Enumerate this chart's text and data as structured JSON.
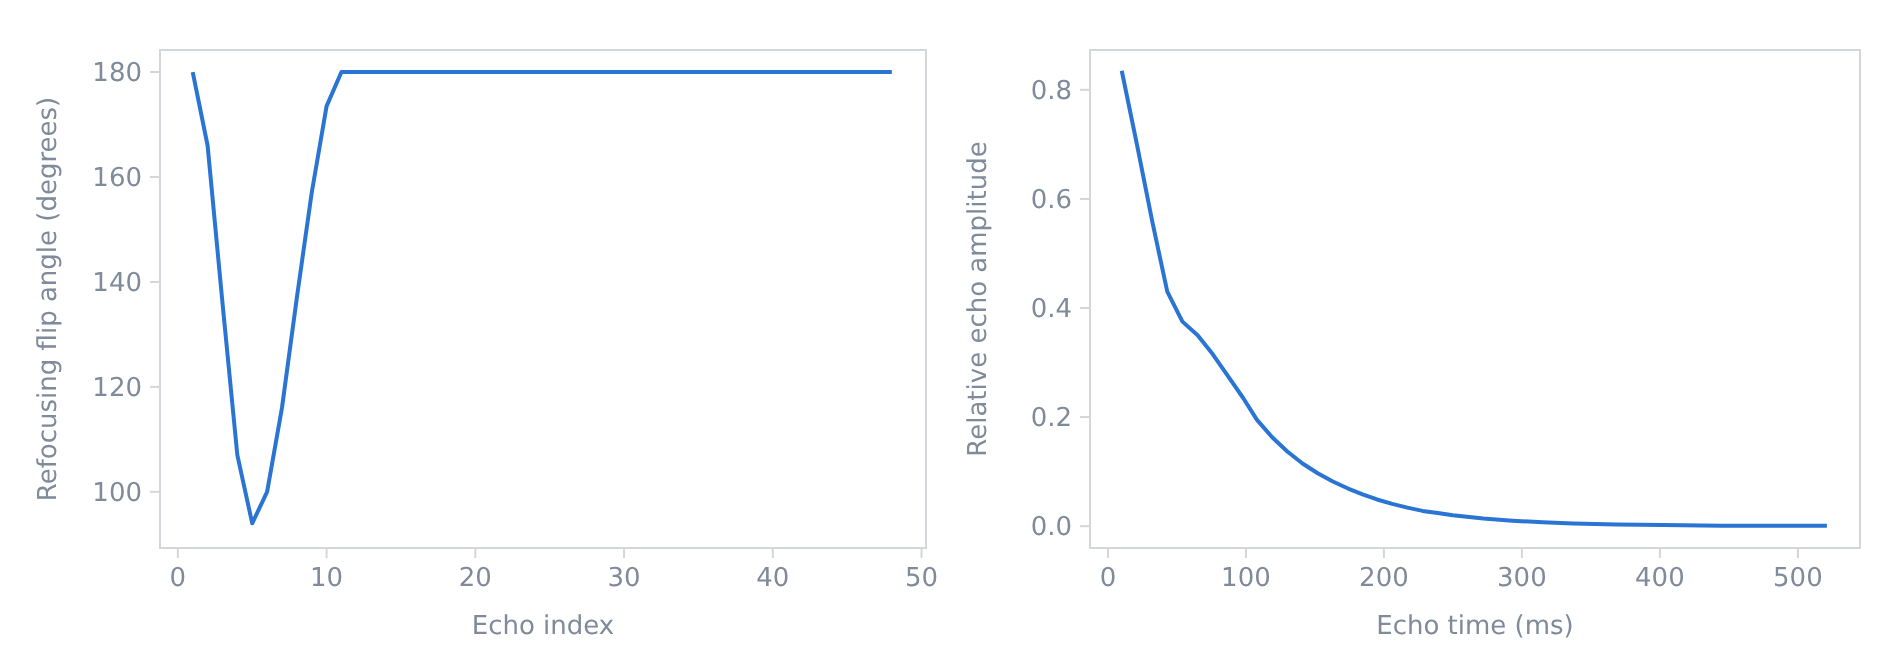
{
  "chart_data": [
    {
      "type": "line",
      "xlabel": "Echo index",
      "ylabel": "Refocusing flip angle (degrees)",
      "x": [
        1,
        2,
        3,
        4,
        5,
        6,
        7,
        8,
        9,
        10,
        11,
        12,
        13,
        14,
        15,
        16,
        17,
        18,
        19,
        20,
        21,
        22,
        23,
        24,
        25,
        26,
        27,
        28,
        29,
        30,
        31,
        32,
        33,
        34,
        35,
        36,
        37,
        38,
        39,
        40,
        41,
        42,
        43,
        44,
        45,
        46,
        47,
        48
      ],
      "series": [
        {
          "color": "#2a74d4",
          "values": [
            180,
            166,
            136,
            107,
            94,
            100,
            116,
            137,
            157,
            173.5,
            180,
            180,
            180,
            180,
            180,
            180,
            180,
            180,
            180,
            180,
            180,
            180,
            180,
            180,
            180,
            180,
            180,
            180,
            180,
            180,
            180,
            180,
            180,
            180,
            180,
            180,
            180,
            180,
            180,
            180,
            180,
            180,
            180,
            180,
            180,
            180,
            180,
            180
          ]
        }
      ],
      "xlim": [
        -1.2,
        50.3
      ],
      "xticks": [
        0,
        10,
        20,
        30,
        40,
        50
      ],
      "ylim": [
        89.3,
        184.2
      ],
      "yticks": [
        100,
        120,
        140,
        160,
        180
      ],
      "grid": false
    },
    {
      "type": "line",
      "xlabel": "Echo time (ms)",
      "ylabel": "Relative echo amplitude",
      "x": [
        10,
        21,
        32,
        43,
        54,
        65,
        76,
        87,
        98,
        108,
        119,
        130,
        141,
        152,
        163,
        174,
        185,
        195,
        206,
        217,
        228,
        239,
        250,
        272,
        293,
        315,
        337,
        369,
        402,
        445,
        489,
        521
      ],
      "series": [
        {
          "color": "#2a74d4",
          "values": [
            0.835,
            0.7,
            0.56,
            0.43,
            0.375,
            0.35,
            0.315,
            0.275,
            0.235,
            0.195,
            0.163,
            0.137,
            0.115,
            0.097,
            0.082,
            0.069,
            0.058,
            0.049,
            0.041,
            0.034,
            0.028,
            0.024,
            0.02,
            0.014,
            0.01,
            0.007,
            0.005,
            0.003,
            0.002,
            0.001,
            0.001,
            0.001
          ]
        }
      ],
      "xlim": [
        -13,
        545
      ],
      "xticks": [
        0,
        100,
        200,
        300,
        400,
        500
      ],
      "ylim": [
        -0.04,
        0.873
      ],
      "yticks": [
        {
          "value": 0,
          "label": "0.0"
        },
        {
          "value": 0.2,
          "label": "0.2"
        },
        {
          "value": 0.4,
          "label": "0.4"
        },
        {
          "value": 0.6,
          "label": "0.6"
        },
        {
          "value": 0.8,
          "label": "0.8"
        }
      ],
      "grid": false
    }
  ]
}
